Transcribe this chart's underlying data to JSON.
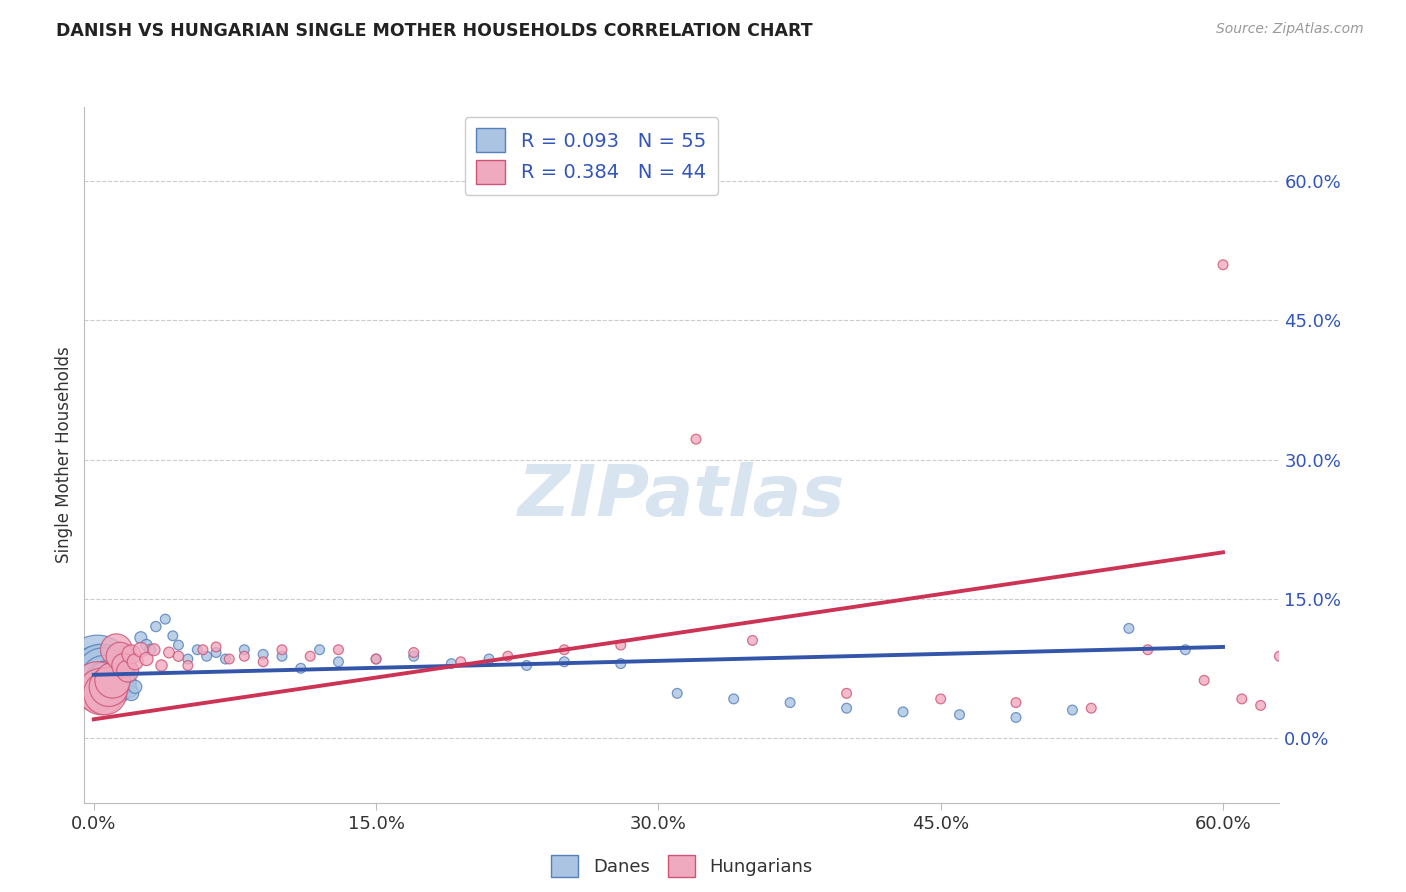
{
  "title": "DANISH VS HUNGARIAN SINGLE MOTHER HOUSEHOLDS CORRELATION CHART",
  "source": "Source: ZipAtlas.com",
  "ylabel": "Single Mother Households",
  "xlim_data": [
    0.0,
    0.6
  ],
  "ylim_data": [
    -0.08,
    0.65
  ],
  "ytick_values": [
    0.0,
    0.15,
    0.3,
    0.45,
    0.6
  ],
  "xtick_values": [
    0.0,
    0.15,
    0.3,
    0.45,
    0.6
  ],
  "danes_color": "#aac4e2",
  "hungarians_color": "#f0aabf",
  "danes_edge_color": "#5580bb",
  "hungarians_edge_color": "#cc5577",
  "trend_danes_color": "#3355aa",
  "trend_hungarians_color": "#cc3355",
  "danes_R": 0.093,
  "danes_N": 55,
  "hungarians_R": 0.384,
  "hungarians_N": 44,
  "legend_text_color": "#3355bb",
  "background_color": "#ffffff",
  "grid_color": "#cccccc",
  "danes_x": [
    0.002,
    0.003,
    0.004,
    0.005,
    0.006,
    0.007,
    0.008,
    0.009,
    0.01,
    0.011,
    0.012,
    0.013,
    0.014,
    0.015,
    0.016,
    0.017,
    0.018,
    0.019,
    0.02,
    0.022,
    0.025,
    0.028,
    0.03,
    0.033,
    0.038,
    0.042,
    0.045,
    0.05,
    0.055,
    0.06,
    0.065,
    0.07,
    0.08,
    0.09,
    0.1,
    0.11,
    0.12,
    0.13,
    0.15,
    0.17,
    0.19,
    0.21,
    0.23,
    0.25,
    0.28,
    0.31,
    0.34,
    0.37,
    0.4,
    0.43,
    0.46,
    0.49,
    0.52,
    0.55,
    0.58
  ],
  "danes_y": [
    0.072,
    0.065,
    0.07,
    0.068,
    0.062,
    0.058,
    0.06,
    0.055,
    0.062,
    0.058,
    0.055,
    0.052,
    0.06,
    0.055,
    0.065,
    0.058,
    0.06,
    0.052,
    0.048,
    0.055,
    0.108,
    0.1,
    0.095,
    0.12,
    0.128,
    0.11,
    0.1,
    0.085,
    0.095,
    0.088,
    0.092,
    0.085,
    0.095,
    0.09,
    0.088,
    0.075,
    0.095,
    0.082,
    0.085,
    0.088,
    0.08,
    0.085,
    0.078,
    0.082,
    0.08,
    0.048,
    0.042,
    0.038,
    0.032,
    0.028,
    0.025,
    0.022,
    0.03,
    0.118,
    0.095
  ],
  "danes_sizes_raw": [
    90,
    80,
    70,
    65,
    60,
    55,
    50,
    45,
    40,
    35,
    30,
    28,
    25,
    22,
    20,
    18,
    16,
    14,
    12,
    10,
    8,
    7,
    6,
    5,
    4,
    4,
    4,
    4,
    4,
    4,
    4,
    4,
    4,
    4,
    4,
    4,
    4,
    4,
    4,
    4,
    4,
    4,
    4,
    4,
    4,
    4,
    4,
    4,
    4,
    4,
    4,
    4,
    4,
    4,
    4
  ],
  "hungarians_x": [
    0.002,
    0.004,
    0.006,
    0.008,
    0.01,
    0.012,
    0.014,
    0.016,
    0.018,
    0.02,
    0.022,
    0.025,
    0.028,
    0.032,
    0.036,
    0.04,
    0.045,
    0.05,
    0.058,
    0.065,
    0.072,
    0.08,
    0.09,
    0.1,
    0.115,
    0.13,
    0.15,
    0.17,
    0.195,
    0.22,
    0.25,
    0.28,
    0.32,
    0.35,
    0.4,
    0.45,
    0.49,
    0.53,
    0.56,
    0.59,
    0.6,
    0.61,
    0.62,
    0.63
  ],
  "hungarians_y": [
    0.055,
    0.05,
    0.048,
    0.055,
    0.062,
    0.095,
    0.088,
    0.078,
    0.072,
    0.09,
    0.082,
    0.095,
    0.085,
    0.095,
    0.078,
    0.092,
    0.088,
    0.078,
    0.095,
    0.098,
    0.085,
    0.088,
    0.082,
    0.095,
    0.088,
    0.095,
    0.085,
    0.092,
    0.082,
    0.088,
    0.095,
    0.1,
    0.322,
    0.105,
    0.048,
    0.042,
    0.038,
    0.032,
    0.095,
    0.062,
    0.51,
    0.042,
    0.035,
    0.088
  ],
  "hungarians_sizes_raw": [
    60,
    55,
    50,
    45,
    40,
    35,
    30,
    25,
    22,
    18,
    14,
    12,
    10,
    8,
    7,
    6,
    5,
    4,
    4,
    4,
    4,
    4,
    4,
    4,
    4,
    4,
    4,
    4,
    4,
    4,
    4,
    4,
    4,
    4,
    4,
    4,
    4,
    4,
    4,
    4,
    4,
    4,
    4,
    4
  ],
  "trend_danes_x0": 0.0,
  "trend_danes_x1": 0.6,
  "trend_danes_y0": 0.068,
  "trend_danes_y1": 0.098,
  "trend_hung_x0": 0.0,
  "trend_hung_x1": 0.6,
  "trend_hung_y0": 0.02,
  "trend_hung_y1": 0.2
}
